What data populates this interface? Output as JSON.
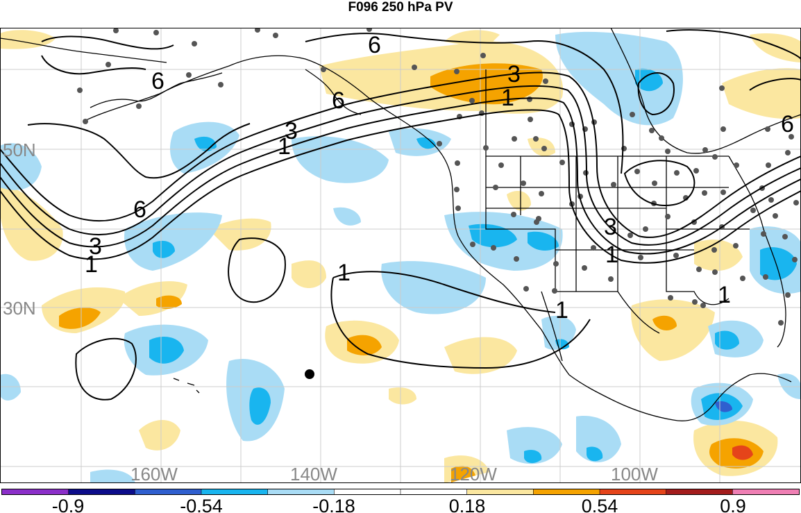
{
  "title": "F096 250 hPa PV",
  "lat_labels": [
    "50N",
    "30N"
  ],
  "lon_labels": [
    "160W",
    "140W",
    "120W",
    "100W"
  ],
  "colorbar": {
    "labels": [
      "-0.9",
      "-0.54",
      "-0.18",
      "0.18",
      "0.54",
      "0.9"
    ],
    "colors": [
      "#8b2fc9",
      "#0c0c8a",
      "#2f5fcf",
      "#19b5ef",
      "#a9dcf5",
      "#ffffff",
      "#ffffff",
      "#fbe7a0",
      "#f5a300",
      "#e5441a",
      "#a31c1c",
      "#ef7fb4"
    ]
  },
  "contour_labels": {
    "bering_6": "6",
    "west_6": "6",
    "canada_6": "6",
    "canada_3": "3",
    "canada_1": "1",
    "top_6": "6",
    "pac_3": "3",
    "pac_1": "1",
    "left_3": "3",
    "left_1": "1",
    "us_3": "3",
    "us_1": "1",
    "east_6": "6",
    "sub_1": "1",
    "mex_1": "1",
    "gulf_1": "1"
  }
}
